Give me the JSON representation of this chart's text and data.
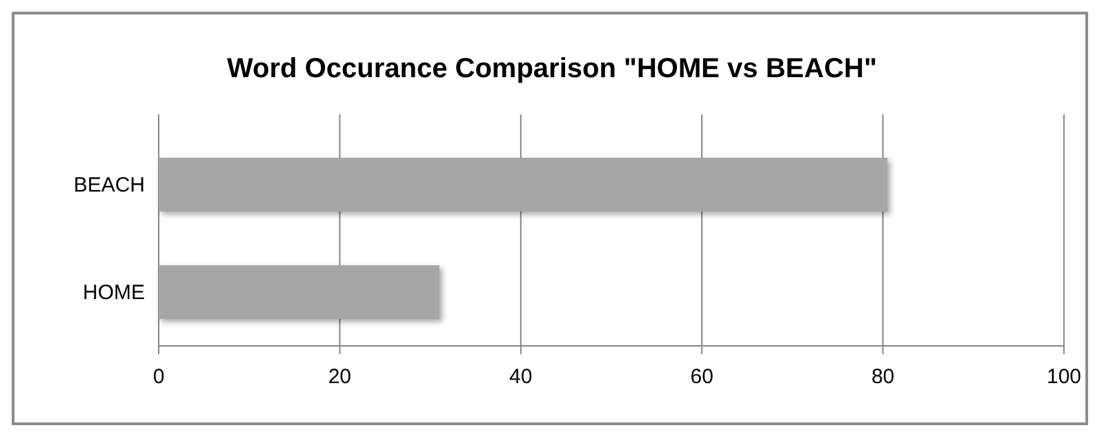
{
  "chart_data": {
    "type": "bar",
    "orientation": "horizontal",
    "title": "Word Occurance Comparison \"HOME vs BEACH\"",
    "categories": [
      "BEACH",
      "HOME"
    ],
    "values": [
      80.5,
      31
    ],
    "color": "#a6a6a6",
    "xlim": [
      0,
      100
    ],
    "xticks": [
      0,
      20,
      40,
      60,
      80,
      100
    ],
    "grid": "x"
  }
}
